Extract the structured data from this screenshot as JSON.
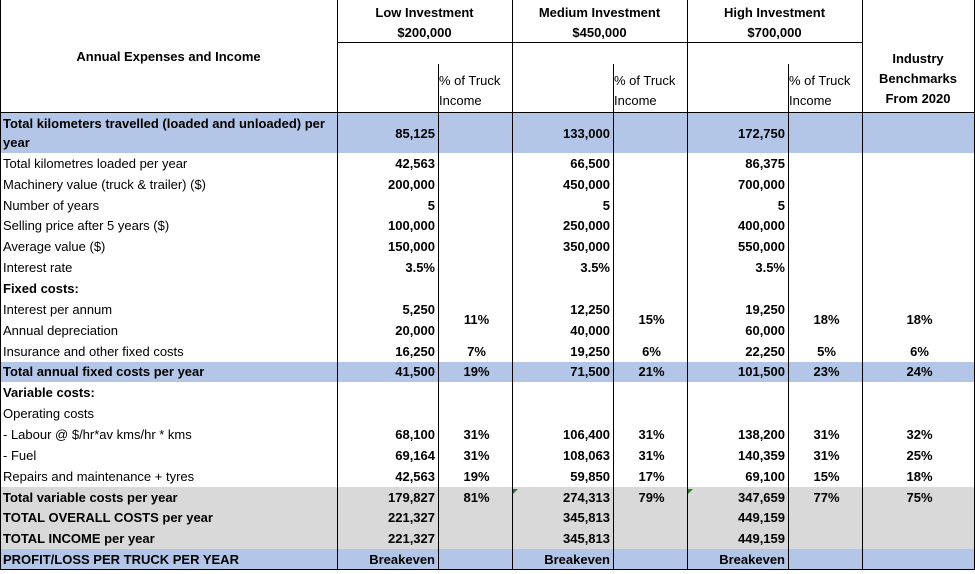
{
  "colors": {
    "blue_band": "#b4c6e7",
    "grey_band": "#d9d9d9",
    "grid": "#000000",
    "marker": "#2a7d2a"
  },
  "header": {
    "title": "Annual Expenses and Income",
    "low": {
      "line1": "Low Investment",
      "line2": "$200,000"
    },
    "medium": {
      "line1": "Medium Investment",
      "line2": "$450,000"
    },
    "high": {
      "line1": "High Investment",
      "line2": "$700,000"
    },
    "pct_line1": "% of Truck",
    "pct_line2": "Income",
    "bench_line1": "Industry",
    "bench_line2": "Benchmarks",
    "bench_line3": "From 2020"
  },
  "rows": [
    {
      "label": "Total kilometers travelled (loaded and unloaded) per year",
      "bold": true,
      "band": "blue",
      "low": "85,125",
      "low_pct": "",
      "med": "133,000",
      "med_pct": "",
      "high": "172,750",
      "high_pct": "",
      "bench": ""
    },
    {
      "label": "Total kilometres loaded per year",
      "low": "42,563",
      "low_pct": "",
      "med": "66,500",
      "med_pct": "",
      "high": "86,375",
      "high_pct": "",
      "bench": ""
    },
    {
      "label": "Machinery value (truck & trailer) ($)",
      "low": "200,000",
      "low_pct": "",
      "med": "450,000",
      "med_pct": "",
      "high": "700,000",
      "high_pct": "",
      "bench": ""
    },
    {
      "label": "Number of years",
      "low": "5",
      "low_pct": "",
      "med": "5",
      "med_pct": "",
      "high": "5",
      "high_pct": "",
      "bench": ""
    },
    {
      "label": "Selling price after 5 years ($)",
      "low": "100,000",
      "low_pct": "",
      "med": "250,000",
      "med_pct": "",
      "high": "400,000",
      "high_pct": "",
      "bench": ""
    },
    {
      "label": "Average value ($)",
      "low": "150,000",
      "low_pct": "",
      "med": "350,000",
      "med_pct": "",
      "high": "550,000",
      "high_pct": "",
      "bench": ""
    },
    {
      "label": "Interest rate",
      "low": "3.5%",
      "low_pct": "",
      "med": "3.5%",
      "med_pct": "",
      "high": "3.5%",
      "high_pct": "",
      "bench": ""
    },
    {
      "label": "Fixed costs:",
      "bold": true,
      "low": "",
      "low_pct": "",
      "med": "",
      "med_pct": "",
      "high": "",
      "high_pct": "",
      "bench": ""
    },
    {
      "label": "Interest per annum",
      "low": "5,250",
      "low_pct": "11%",
      "med": "12,250",
      "med_pct": "15%",
      "high": "19,250",
      "high_pct": "18%",
      "bench": "18%"
    },
    {
      "label": "Annual depreciation",
      "low": "20,000",
      "low_pct": "",
      "med": "40,000",
      "med_pct": "",
      "high": "60,000",
      "high_pct": "",
      "bench": ""
    },
    {
      "label": "Insurance and other fixed costs",
      "low": "16,250",
      "low_pct": "7%",
      "med": "19,250",
      "med_pct": "6%",
      "high": "22,250",
      "high_pct": "5%",
      "bench": "6%"
    },
    {
      "label": "Total annual fixed costs per year",
      "bold": true,
      "band": "blue",
      "low": "41,500",
      "low_pct": "19%",
      "med": "71,500",
      "med_pct": "21%",
      "high": "101,500",
      "high_pct": "23%",
      "bench": "24%"
    },
    {
      "label": "Variable costs:",
      "bold": true,
      "low": "",
      "low_pct": "",
      "med": "",
      "med_pct": "",
      "high": "",
      "high_pct": "",
      "bench": ""
    },
    {
      "label": "Operating costs",
      "low": "",
      "low_pct": "",
      "med": "",
      "med_pct": "",
      "high": "",
      "high_pct": "",
      "bench": ""
    },
    {
      "label": " - Labour @ $/hr*av kms/hr * kms",
      "low": "68,100",
      "low_pct": "31%",
      "med": "106,400",
      "med_pct": "31%",
      "high": "138,200",
      "high_pct": "31%",
      "bench": "32%"
    },
    {
      "label": " - Fuel",
      "low": "69,164",
      "low_pct": "31%",
      "med": "108,063",
      "med_pct": "31%",
      "high": "140,359",
      "high_pct": "31%",
      "bench": "25%"
    },
    {
      "label": "Repairs and maintenance + tyres",
      "low": "42,563",
      "low_pct": "19%",
      "med": "59,850",
      "med_pct": "17%",
      "high": "69,100",
      "high_pct": "15%",
      "bench": "18%"
    },
    {
      "label": "Total variable costs per year",
      "bold": true,
      "band": "grey",
      "low": "179,827",
      "low_pct": "81%",
      "med": "274,313",
      "med_pct": "79%",
      "high": "347,659",
      "high_pct": "77%",
      "bench": "75%"
    },
    {
      "label": "TOTAL OVERALL COSTS per year",
      "bold": true,
      "band": "grey",
      "low": "221,327",
      "low_pct": "",
      "med": "345,813",
      "med_pct": "",
      "high": "449,159",
      "high_pct": "",
      "bench": ""
    },
    {
      "label": "TOTAL INCOME per year",
      "bold": true,
      "band": "grey",
      "low": "221,327",
      "low_pct": "",
      "med": "345,813",
      "med_pct": "",
      "high": "449,159",
      "high_pct": "",
      "bench": ""
    },
    {
      "label": "PROFIT/LOSS PER TRUCK PER YEAR",
      "bold": true,
      "band": "blue",
      "low": "Breakeven",
      "low_pct": "",
      "med": "Breakeven",
      "med_pct": "",
      "high": "Breakeven",
      "high_pct": "",
      "bench": ""
    }
  ]
}
